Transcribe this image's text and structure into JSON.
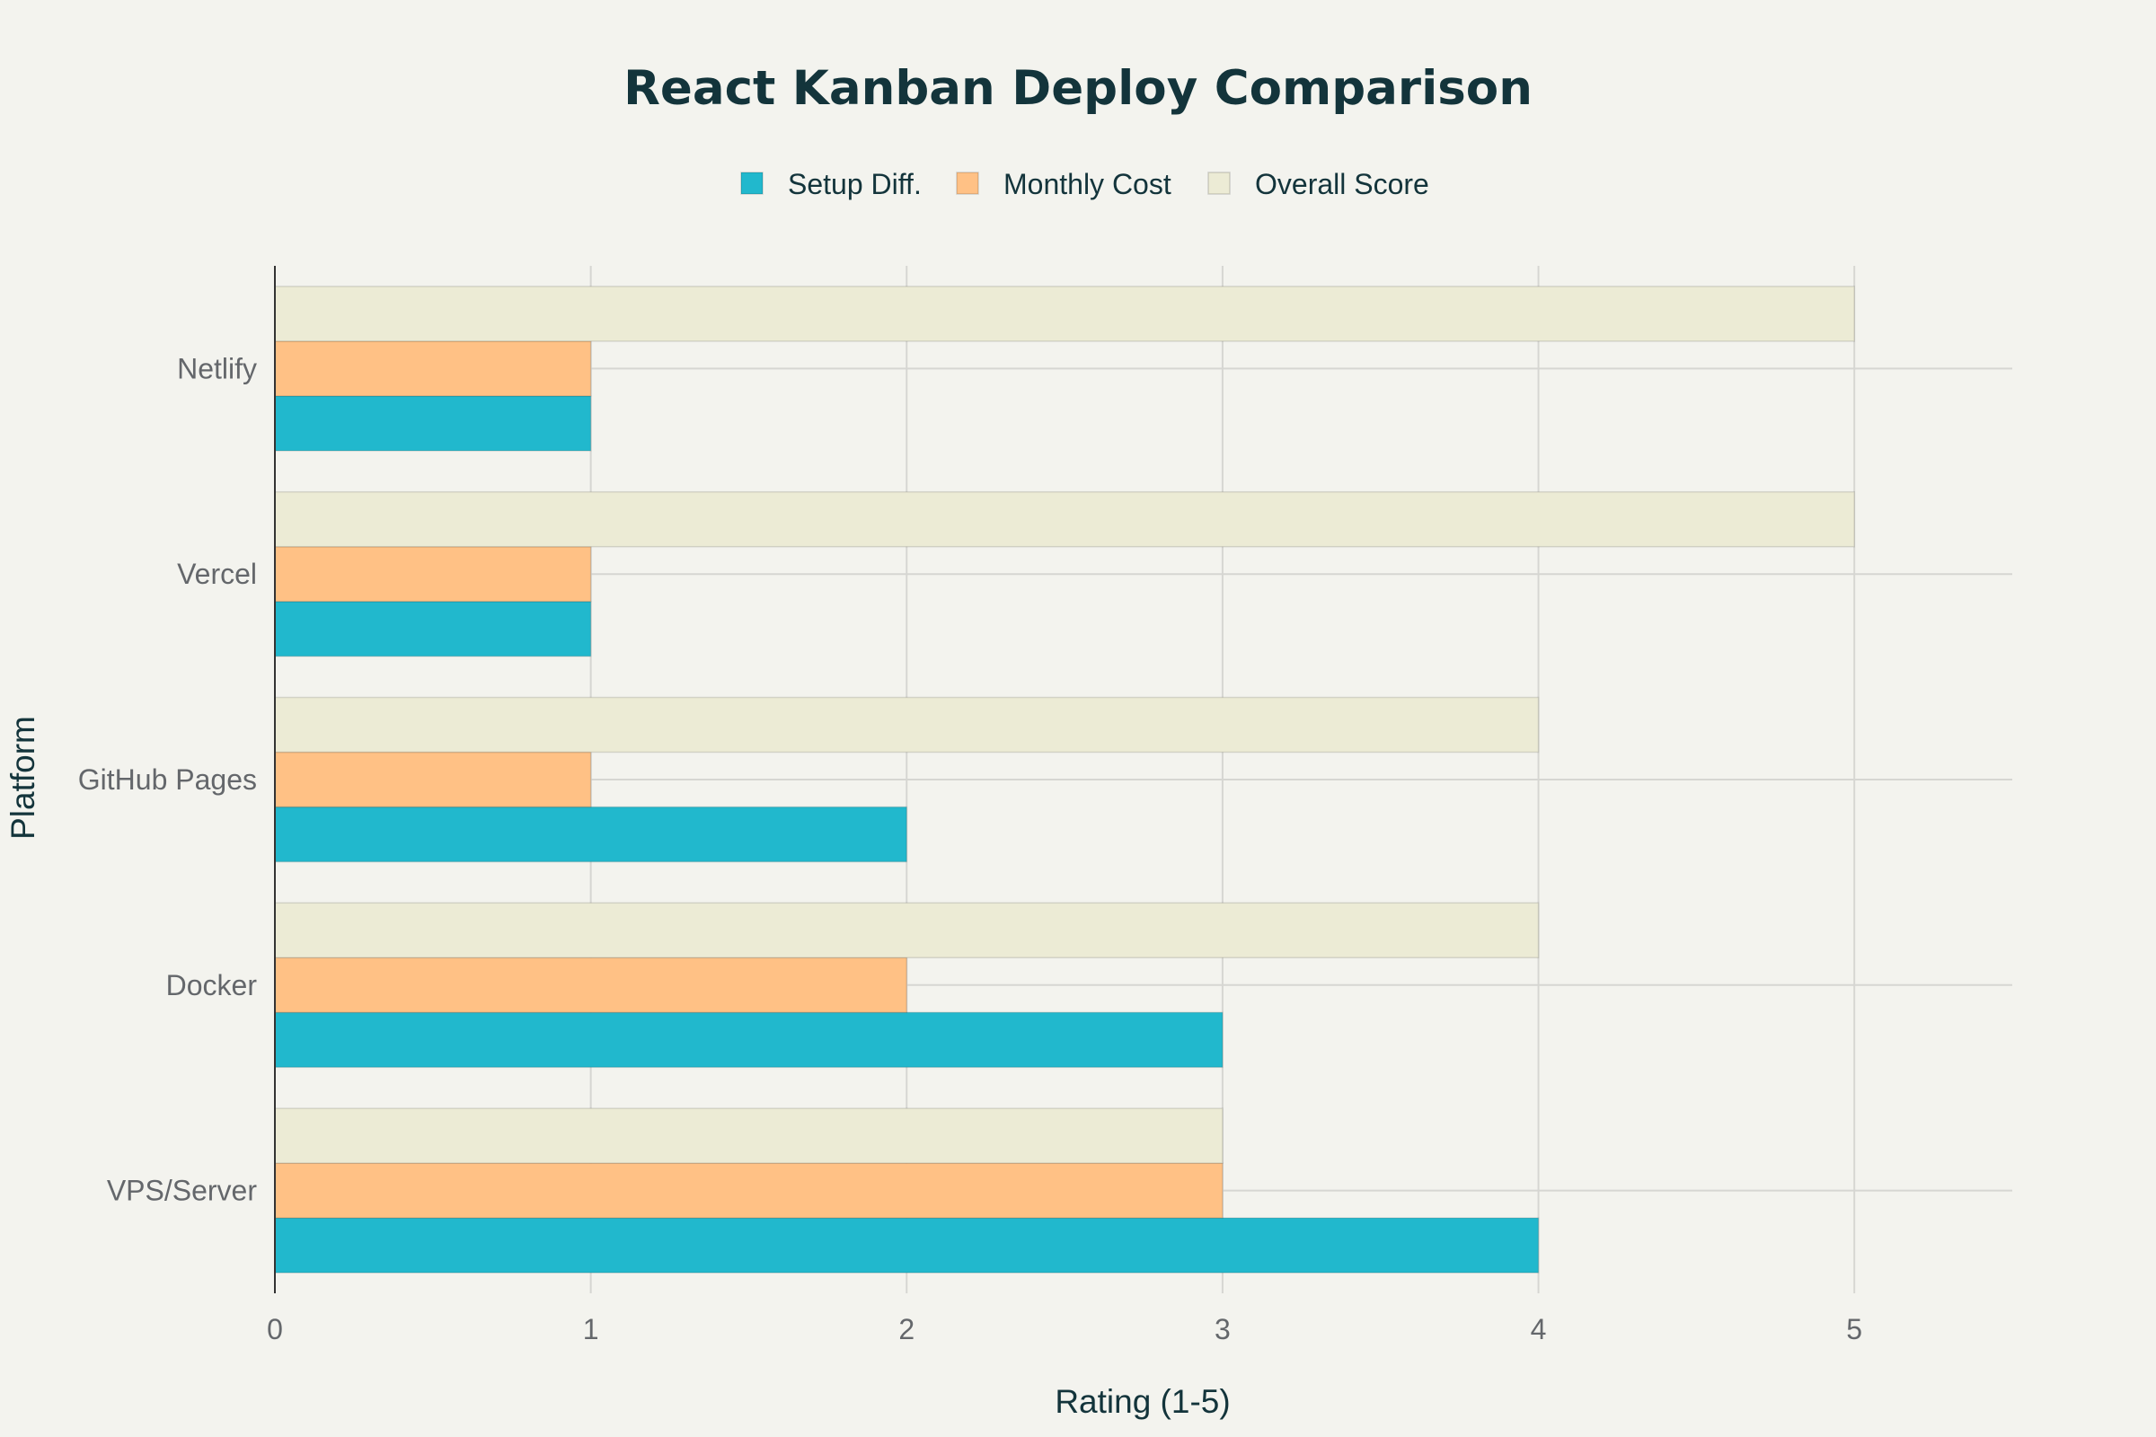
{
  "chart_data": {
    "type": "bar",
    "orientation": "horizontal",
    "title": "React Kanban Deploy Comparison",
    "xlabel": "Rating (1-5)",
    "ylabel": "Platform",
    "categories": [
      "Netlify",
      "Vercel",
      "GitHub Pages",
      "Docker",
      "VPS/Server"
    ],
    "series": [
      {
        "name": "Setup Diff.",
        "values": [
          1,
          1,
          2,
          3,
          4
        ],
        "color": "#21b8cd"
      },
      {
        "name": "Monthly Cost",
        "values": [
          1,
          1,
          1,
          2,
          3
        ],
        "color": "#ffc185"
      },
      {
        "name": "Overall Score",
        "values": [
          5,
          5,
          4,
          4,
          3
        ],
        "color": "#ecebd5"
      }
    ],
    "xlim": [
      0,
      5.5
    ],
    "xticks": [
      "0",
      "1",
      "2",
      "3",
      "4",
      "5"
    ],
    "grid": true,
    "legend_position": "top-center",
    "colors": {
      "background": "#f3f3ee",
      "grid": "#d6d6d2",
      "axis_line": "#333333",
      "title": "#13343b",
      "tick_label": "#64676b"
    }
  }
}
